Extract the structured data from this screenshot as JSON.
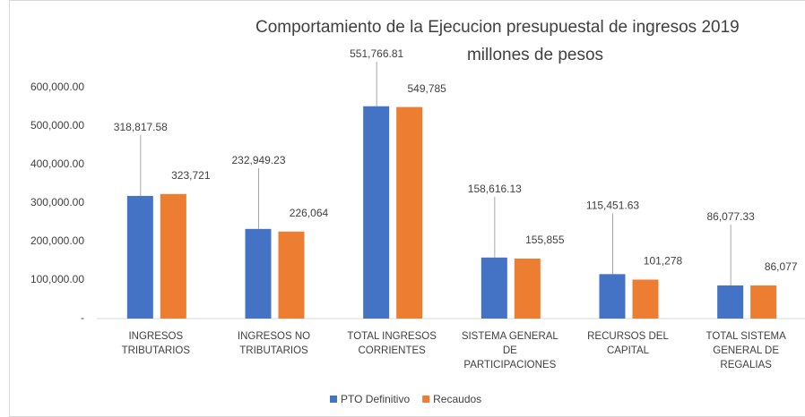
{
  "chart_data": {
    "type": "bar",
    "title": "Comportamiento de la Ejecucion presupuestal de ingresos 2019",
    "subtitle": "millones de pesos",
    "categories": [
      "INGRESOS TRIBUTARIOS",
      "INGRESOS NO TRIBUTARIOS",
      "TOTAL INGRESOS CORRIENTES",
      "SISTEMA GENERAL DE PARTICIPACIONES",
      "RECURSOS DEL CAPITAL",
      "TOTAL SISTEMA GENERAL DE REGALIAS"
    ],
    "series": [
      {
        "name": "PTO Definitivo",
        "color": "#4472c4",
        "values": [
          318817.58,
          232949.23,
          551766.81,
          158616.13,
          115451.63,
          86077.33
        ],
        "value_labels": [
          "318,817.58",
          "232,949.23",
          "551,766.81",
          "158,616.13",
          "115,451.63",
          "86,077.33"
        ]
      },
      {
        "name": "Recaudos",
        "color": "#ed7d31",
        "values": [
          323721,
          226064,
          549785,
          155855,
          101278,
          86077
        ],
        "value_labels": [
          "323,721",
          "226,064",
          "549,785",
          "155,855",
          "101,278",
          "86,077"
        ]
      }
    ],
    "ylim": [
      0,
      600000
    ],
    "yticks": [
      {
        "value": 0,
        "label": "-"
      },
      {
        "value": 100000,
        "label": "100,000.00"
      },
      {
        "value": 200000,
        "label": "200,000.00"
      },
      {
        "value": 300000,
        "label": "300,000.00"
      },
      {
        "value": 400000,
        "label": "400,000.00"
      },
      {
        "value": 500000,
        "label": "500,000.00"
      },
      {
        "value": 600000,
        "label": "600,000.00"
      }
    ],
    "grid": false,
    "legend": "bottom"
  }
}
